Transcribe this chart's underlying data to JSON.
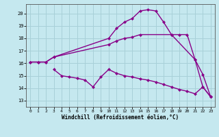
{
  "xlabel": "Windchill (Refroidissement éolien,°C)",
  "xlim": [
    -0.5,
    23.5
  ],
  "ylim": [
    12.5,
    20.75
  ],
  "xticks": [
    0,
    1,
    2,
    3,
    4,
    5,
    6,
    7,
    8,
    9,
    10,
    11,
    12,
    13,
    14,
    15,
    16,
    17,
    18,
    19,
    20,
    21,
    22,
    23
  ],
  "yticks": [
    13,
    14,
    15,
    16,
    17,
    18,
    19,
    20
  ],
  "bg_color": "#c5e8ef",
  "grid_color": "#a8d0d8",
  "line_color": "#880088",
  "line_width": 1.0,
  "marker": "D",
  "marker_size": 2.5,
  "line1_x": [
    0,
    1,
    2,
    3,
    10,
    11,
    12,
    13,
    14,
    18,
    19,
    20,
    21,
    22,
    23
  ],
  "line1_y": [
    16.1,
    16.1,
    16.1,
    16.5,
    17.5,
    17.8,
    18.0,
    18.1,
    18.3,
    18.3,
    18.3,
    18.3,
    16.3,
    15.1,
    13.3
  ],
  "line2_x": [
    0,
    1,
    2,
    3,
    10,
    11,
    12,
    13,
    14,
    15,
    16,
    17,
    18,
    21,
    22,
    23
  ],
  "line2_y": [
    16.1,
    16.1,
    16.1,
    16.5,
    18.0,
    18.8,
    19.3,
    19.6,
    20.2,
    20.3,
    20.2,
    19.3,
    18.3,
    16.3,
    14.1,
    13.3
  ],
  "line3_x": [
    3,
    4,
    5,
    6,
    7,
    8,
    9,
    10,
    11,
    12,
    13,
    14,
    15,
    16,
    17,
    18,
    19,
    20,
    21,
    22,
    23
  ],
  "line3_y": [
    15.5,
    15.0,
    14.9,
    14.8,
    14.65,
    14.1,
    14.9,
    15.5,
    15.2,
    15.0,
    14.9,
    14.75,
    14.65,
    14.5,
    14.3,
    14.1,
    13.9,
    13.75,
    13.55,
    14.1,
    13.3
  ]
}
